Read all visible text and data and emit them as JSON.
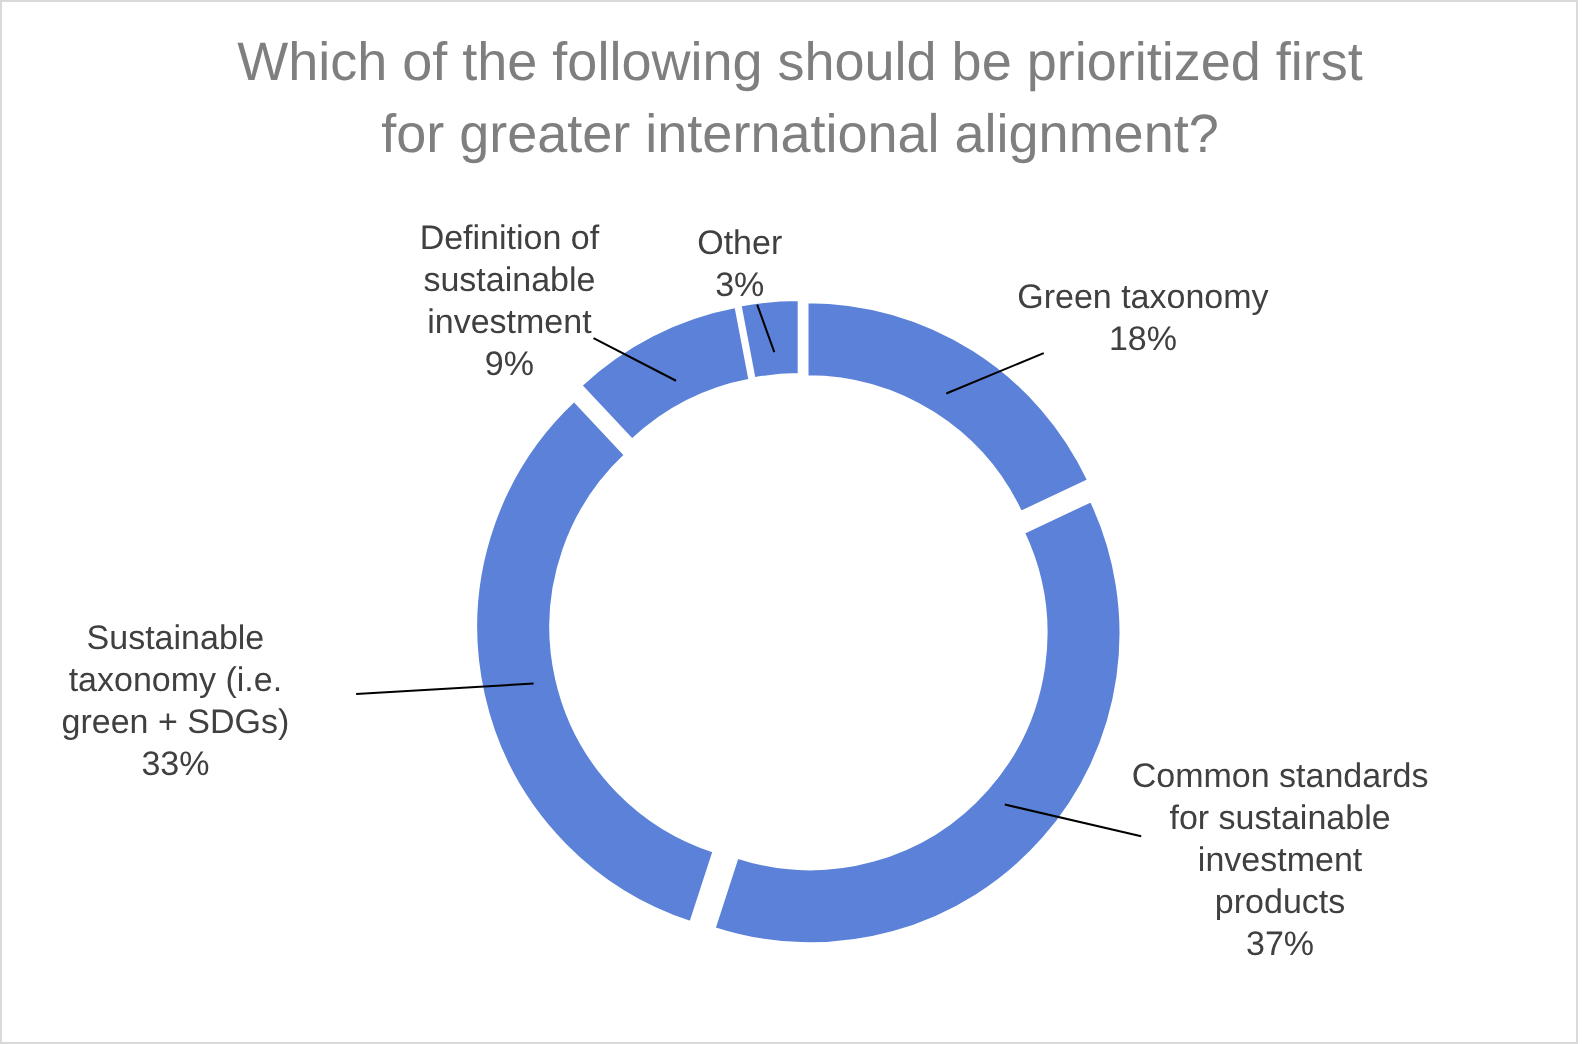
{
  "chart_data": {
    "type": "donut",
    "title": "Which of the following should be prioritized first for greater international alignment?",
    "categories": [
      "Green taxonomy",
      "Common standards for sustainable investment products",
      "Sustainable taxonomy (i.e. green + SDGs)",
      "Definition of sustainable investment",
      "Other"
    ],
    "values": [
      18,
      37,
      33,
      9,
      3
    ],
    "colors": [
      "#5b82d8",
      "#5b82d8",
      "#5b82d8",
      "#5b82d8",
      "#5b82d8"
    ],
    "value_labels": [
      "18%",
      "37%",
      "33%",
      "9%",
      "3%"
    ]
  }
}
